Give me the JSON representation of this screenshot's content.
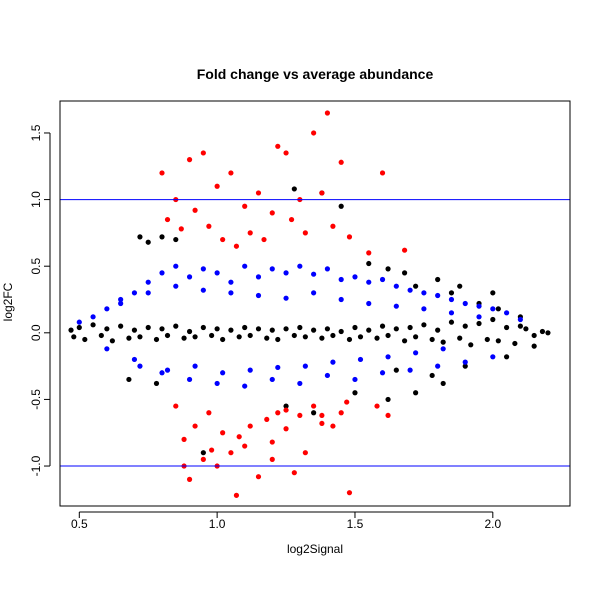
{
  "chart_data": {
    "type": "scatter",
    "title": "Fold change vs average abundance",
    "xlabel": "log2Signal",
    "ylabel": "log2FC",
    "xlim": [
      0.43,
      2.28
    ],
    "ylim": [
      -1.3,
      1.74
    ],
    "x_ticks": [
      0.5,
      1.0,
      1.5,
      2.0
    ],
    "x_tick_labels": [
      "0.5",
      "1.0",
      "1.5",
      "2.0"
    ],
    "y_ticks": [
      -1.0,
      -0.5,
      0.0,
      0.5,
      1.0,
      1.5
    ],
    "y_tick_labels": [
      "-1.0",
      "-0.5",
      "0.0",
      "0.5",
      "1.0",
      "1.5"
    ],
    "reference_lines": [
      1.0,
      -1.0
    ],
    "reference_line_color": "#0000ff",
    "grid": false,
    "colors": {
      "black_series": "#000000",
      "blue_series": "#0000ff",
      "red_series": "#ff0000"
    },
    "series": [
      {
        "color": "#000000",
        "x": [
          0.47,
          0.48,
          0.5,
          0.52,
          0.55,
          0.58,
          0.6,
          0.62,
          0.65,
          0.68,
          0.7,
          0.72,
          0.75,
          0.78,
          0.8,
          0.82,
          0.85,
          0.88,
          0.9,
          0.92,
          0.95,
          0.98,
          1.0,
          1.02,
          1.05,
          1.08,
          1.1,
          1.12,
          1.15,
          1.18,
          1.2,
          1.22,
          1.25,
          1.28,
          1.3,
          1.32,
          1.35,
          1.38,
          1.4,
          1.42,
          1.45,
          1.48,
          1.5,
          1.52,
          1.55,
          1.58,
          1.6,
          1.62,
          1.65,
          1.68,
          1.7,
          1.72,
          1.75,
          1.78,
          1.8,
          1.82,
          1.85,
          1.88,
          1.9,
          1.92,
          1.95,
          1.98,
          2.0,
          2.02,
          2.05,
          2.08,
          2.1,
          2.12,
          2.15,
          2.18,
          2.2,
          1.72,
          1.85,
          1.95,
          2.02,
          2.1,
          1.65,
          1.78,
          1.9,
          2.05,
          2.15,
          0.72,
          0.75,
          0.8,
          0.85,
          1.28,
          1.38,
          1.45,
          1.55,
          1.62,
          1.68,
          1.8,
          1.88,
          2.0,
          1.25,
          1.35,
          1.5,
          0.68,
          0.78,
          0.95,
          1.62,
          1.72,
          1.82
        ],
        "y": [
          0.02,
          -0.03,
          0.04,
          -0.05,
          0.06,
          -0.02,
          0.03,
          -0.06,
          0.05,
          -0.04,
          0.02,
          -0.03,
          0.04,
          -0.05,
          0.03,
          -0.02,
          0.05,
          -0.04,
          0.01,
          -0.03,
          0.04,
          -0.02,
          0.03,
          -0.05,
          0.02,
          -0.03,
          0.04,
          -0.02,
          0.03,
          -0.04,
          0.02,
          -0.05,
          0.03,
          -0.02,
          0.04,
          -0.03,
          0.02,
          -0.04,
          0.03,
          -0.02,
          0.01,
          -0.05,
          0.04,
          -0.03,
          0.02,
          -0.04,
          0.05,
          -0.02,
          0.03,
          -0.06,
          0.04,
          -0.03,
          0.06,
          -0.05,
          0.02,
          -0.07,
          0.08,
          -0.04,
          0.05,
          -0.09,
          0.07,
          -0.05,
          0.1,
          -0.06,
          0.04,
          -0.08,
          0.05,
          0.03,
          -0.02,
          0.01,
          0.0,
          0.35,
          0.3,
          0.22,
          0.18,
          0.12,
          -0.28,
          -0.32,
          -0.25,
          -0.18,
          -0.1,
          0.72,
          0.68,
          0.72,
          0.7,
          1.08,
          1.05,
          0.95,
          0.52,
          0.48,
          0.45,
          0.4,
          0.35,
          0.3,
          -0.55,
          -0.6,
          -0.45,
          -0.35,
          -0.38,
          -0.9,
          -0.5,
          -0.45,
          -0.38
        ]
      },
      {
        "color": "#0000ff",
        "x": [
          0.5,
          0.55,
          0.6,
          0.65,
          0.7,
          0.75,
          0.8,
          0.85,
          0.9,
          0.95,
          1.0,
          1.05,
          1.1,
          1.15,
          1.2,
          1.25,
          1.3,
          1.35,
          1.4,
          1.45,
          1.5,
          1.55,
          1.6,
          1.65,
          1.7,
          1.75,
          1.8,
          1.85,
          1.9,
          1.95,
          2.0,
          2.05,
          2.1,
          0.6,
          0.7,
          0.8,
          0.9,
          1.0,
          1.1,
          1.2,
          1.3,
          1.4,
          1.5,
          1.6,
          1.7,
          1.8,
          1.9,
          2.0,
          0.65,
          0.75,
          0.85,
          0.95,
          1.05,
          1.15,
          1.25,
          1.35,
          1.45,
          1.55,
          1.65,
          1.75,
          1.85,
          1.95,
          0.72,
          0.82,
          0.92,
          1.02,
          1.12,
          1.22,
          1.32,
          1.42,
          1.52,
          1.62,
          1.72,
          1.82
        ],
        "y": [
          0.08,
          0.12,
          0.18,
          0.25,
          0.3,
          0.38,
          0.45,
          0.5,
          0.42,
          0.48,
          0.45,
          0.38,
          0.5,
          0.42,
          0.48,
          0.45,
          0.5,
          0.44,
          0.48,
          0.4,
          0.42,
          0.38,
          0.4,
          0.35,
          0.32,
          0.3,
          0.28,
          0.25,
          0.22,
          0.2,
          0.18,
          0.15,
          0.1,
          -0.12,
          -0.2,
          -0.3,
          -0.35,
          -0.38,
          -0.4,
          -0.35,
          -0.38,
          -0.32,
          -0.35,
          -0.3,
          -0.28,
          -0.25,
          -0.22,
          -0.18,
          0.22,
          0.3,
          0.35,
          0.32,
          0.3,
          0.28,
          0.26,
          0.3,
          0.25,
          0.22,
          0.2,
          0.18,
          0.15,
          0.12,
          -0.25,
          -0.28,
          -0.25,
          -0.3,
          -0.28,
          -0.26,
          -0.25,
          -0.22,
          -0.2,
          -0.18,
          -0.15,
          -0.12
        ]
      },
      {
        "color": "#ff0000",
        "x": [
          0.8,
          0.82,
          0.85,
          0.87,
          0.9,
          0.92,
          0.95,
          0.97,
          1.0,
          1.02,
          1.05,
          1.07,
          1.1,
          1.12,
          1.15,
          1.17,
          1.2,
          1.22,
          1.25,
          1.27,
          1.3,
          1.32,
          1.35,
          1.38,
          1.4,
          1.42,
          1.45,
          1.48,
          1.55,
          1.6,
          1.68,
          0.85,
          0.88,
          0.9,
          0.92,
          0.95,
          0.97,
          1.0,
          1.02,
          1.05,
          1.07,
          1.1,
          1.12,
          1.15,
          1.18,
          1.2,
          1.22,
          1.25,
          1.28,
          1.3,
          1.32,
          1.35,
          1.38,
          1.45,
          1.48,
          0.88,
          0.98,
          1.08,
          1.2,
          1.25,
          1.38,
          1.42,
          1.47,
          1.58,
          1.62
        ],
        "y": [
          1.2,
          0.85,
          1.0,
          0.78,
          1.3,
          0.92,
          1.35,
          0.8,
          1.1,
          0.7,
          1.2,
          0.65,
          0.95,
          0.75,
          1.05,
          0.7,
          0.9,
          1.4,
          1.35,
          0.85,
          1.0,
          0.75,
          1.5,
          1.05,
          1.65,
          0.8,
          1.28,
          0.72,
          0.6,
          1.2,
          0.62,
          -0.55,
          -0.8,
          -1.1,
          -0.7,
          -0.95,
          -0.6,
          -1.0,
          -0.75,
          -0.9,
          -1.22,
          -0.85,
          -0.7,
          -1.08,
          -0.65,
          -0.95,
          -0.6,
          -0.72,
          -1.05,
          -0.62,
          -0.9,
          -0.55,
          -0.68,
          -0.6,
          -1.2,
          -1.0,
          -0.88,
          -0.78,
          -0.82,
          -0.58,
          -0.62,
          -0.7,
          -0.52,
          -0.55,
          -0.62
        ]
      }
    ]
  }
}
